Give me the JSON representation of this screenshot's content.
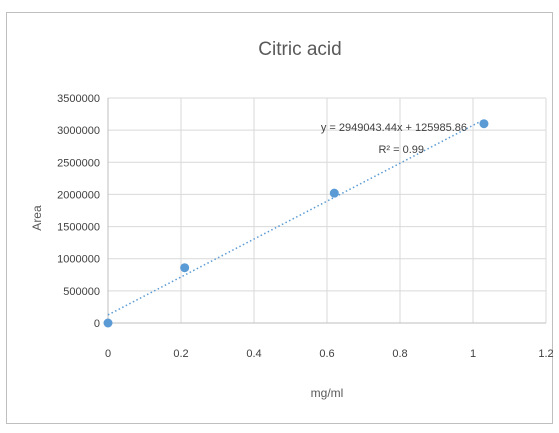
{
  "chart_data": {
    "type": "scatter",
    "title": "Citric acid",
    "xlabel": "mg/ml",
    "ylabel": "Area",
    "xlim": [
      0,
      1.2
    ],
    "ylim": [
      0,
      3500000
    ],
    "x_ticks": [
      "0",
      "0.2",
      "0.4",
      "0.6",
      "0.8",
      "1",
      "1.2"
    ],
    "y_ticks": [
      "0",
      "500000",
      "1000000",
      "1500000",
      "2000000",
      "2500000",
      "3000000",
      "3500000"
    ],
    "grid": true,
    "legend": "none",
    "series": [
      {
        "points": [
          {
            "x": 0,
            "y": 0
          },
          {
            "x": 0.21,
            "y": 860000
          },
          {
            "x": 0.62,
            "y": 2020000
          },
          {
            "x": 1.03,
            "y": 3100000
          }
        ],
        "color": "#5b9bd5"
      }
    ],
    "trendline": {
      "type": "linear",
      "slope": 2949043.44,
      "intercept": 125985.86,
      "x_range": [
        0,
        1.03
      ],
      "style": "dotted",
      "color": "#5b9bd5",
      "equation_label": "y = 2949043.44x + 125985.86",
      "r2_label": "R² = 0.99"
    }
  }
}
